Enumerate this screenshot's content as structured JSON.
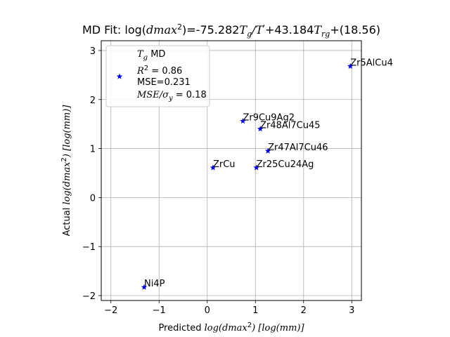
{
  "chart_data": {
    "type": "scatter",
    "title_prefix": "MD Fit: log(",
    "title_var": "dmax",
    "title_sup": "2",
    "title_mid": ")=-75.282",
    "title_tg": "T",
    "title_tg_sub": "g",
    "title_slash": "/",
    "title_tp": "T",
    "title_tp_sup": "'",
    "title_rest": "+43.184",
    "title_trg": "T",
    "title_trg_sub": "rg",
    "title_end": "+(18.56)",
    "xlabel_prefix": "Predicted ",
    "xlabel_var": "log(dmax",
    "xlabel_sup": "2",
    "xlabel_unit": ") [log(mm)]",
    "ylabel_prefix": "Actual ",
    "ylabel_var": "log(dmax",
    "ylabel_sup": "2",
    "ylabel_unit": ") [log(mm)]",
    "xlim": [
      -2.2,
      3.2
    ],
    "ylim": [
      -2.1,
      3.2
    ],
    "xticks": [
      -2,
      -1,
      0,
      1,
      2,
      3
    ],
    "yticks": [
      -2,
      -1,
      0,
      1,
      2,
      3
    ],
    "xtick_labels": [
      "−2",
      "−1",
      "0",
      "1",
      "2",
      "3"
    ],
    "ytick_labels": [
      "−2",
      "−1",
      "0",
      "1",
      "2",
      "3"
    ],
    "grid": true,
    "legend_position": "top-left",
    "legend": {
      "series_name": "T",
      "series_sub": "g",
      "series_suffix": " MD",
      "r2_label": "R",
      "r2_sup": "2",
      "r2_value": " = 0.86",
      "mse_line": "MSE=0.231",
      "ratio_label": "MSE/σ",
      "ratio_sub": "y",
      "ratio_value": " = 0.18"
    },
    "marker_color": "#0000ff",
    "points": [
      {
        "label": "Zr5AlCu4",
        "x": 2.97,
        "y": 2.68
      },
      {
        "label": "Zr9Cu9Ag2",
        "x": 0.74,
        "y": 1.56
      },
      {
        "label": "Zr48Al7Cu45",
        "x": 1.1,
        "y": 1.4
      },
      {
        "label": "Zr47Al7Cu46",
        "x": 1.26,
        "y": 0.95
      },
      {
        "label": "ZrCu",
        "x": 0.12,
        "y": 0.61
      },
      {
        "label": "Zr25Cu24Ag",
        "x": 1.02,
        "y": 0.61
      },
      {
        "label": "Ni4P",
        "x": -1.31,
        "y": -1.83
      }
    ]
  }
}
